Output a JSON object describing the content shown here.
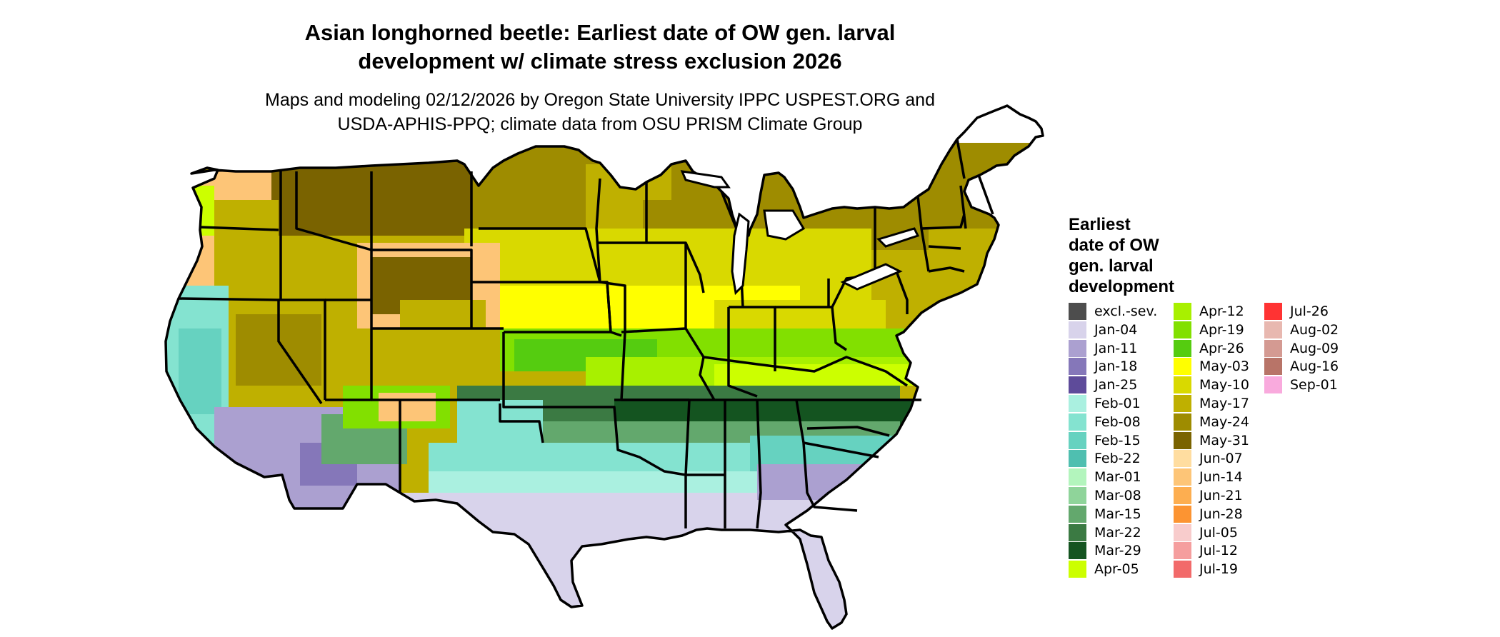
{
  "title_line1": "Asian longhorned beetle: Earliest date of OW gen. larval",
  "title_line2": "development w/ climate stress exclusion 2026",
  "subtitle_line1": "Maps and modeling 02/12/2026 by Oregon State University IPPC USPEST.ORG and",
  "subtitle_line2": "USDA-APHIS-PPQ; climate data from OSU PRISM Climate Group",
  "legend": {
    "title_lines": [
      "Earliest",
      "date of OW",
      "gen. larval",
      "development"
    ],
    "items": [
      {
        "label": "excl.-sev.",
        "color": "#4d4d4d"
      },
      {
        "label": "Jan-04",
        "color": "#d8d3eb"
      },
      {
        "label": "Jan-11",
        "color": "#aba0d0"
      },
      {
        "label": "Jan-18",
        "color": "#8577b9"
      },
      {
        "label": "Jan-25",
        "color": "#5e4b9a"
      },
      {
        "label": "Feb-01",
        "color": "#aaf0e0"
      },
      {
        "label": "Feb-08",
        "color": "#84e3d0"
      },
      {
        "label": "Feb-15",
        "color": "#66d2c0"
      },
      {
        "label": "Feb-22",
        "color": "#4fbfb0"
      },
      {
        "label": "Mar-01",
        "color": "#b3f5bd"
      },
      {
        "label": "Mar-08",
        "color": "#8fd49a"
      },
      {
        "label": "Mar-15",
        "color": "#63a86d"
      },
      {
        "label": "Mar-22",
        "color": "#3b7a43"
      },
      {
        "label": "Mar-29",
        "color": "#145420"
      },
      {
        "label": "Apr-05",
        "color": "#ccff00"
      },
      {
        "label": "Apr-12",
        "color": "#a8f000"
      },
      {
        "label": "Apr-19",
        "color": "#82e000"
      },
      {
        "label": "Apr-26",
        "color": "#55cc10"
      },
      {
        "label": "May-03",
        "color": "#ffff00"
      },
      {
        "label": "May-10",
        "color": "#d9d900"
      },
      {
        "label": "May-17",
        "color": "#bfb000"
      },
      {
        "label": "May-24",
        "color": "#9e8c00"
      },
      {
        "label": "May-31",
        "color": "#7a6300"
      },
      {
        "label": "Jun-07",
        "color": "#ffdda0"
      },
      {
        "label": "Jun-14",
        "color": "#fdc577"
      },
      {
        "label": "Jun-21",
        "color": "#fdae50"
      },
      {
        "label": "Jun-28",
        "color": "#fc9432"
      },
      {
        "label": "Jul-05",
        "color": "#f8cccc"
      },
      {
        "label": "Jul-12",
        "color": "#f59e9e"
      },
      {
        "label": "Jul-19",
        "color": "#f26a6a"
      },
      {
        "label": "Jul-26",
        "color": "#ff3333"
      },
      {
        "label": "Aug-02",
        "color": "#e8b8b0"
      },
      {
        "label": "Aug-09",
        "color": "#d49a92"
      },
      {
        "label": "Aug-16",
        "color": "#b87468"
      },
      {
        "label": "Sep-01",
        "color": "#f9aadd"
      }
    ]
  }
}
